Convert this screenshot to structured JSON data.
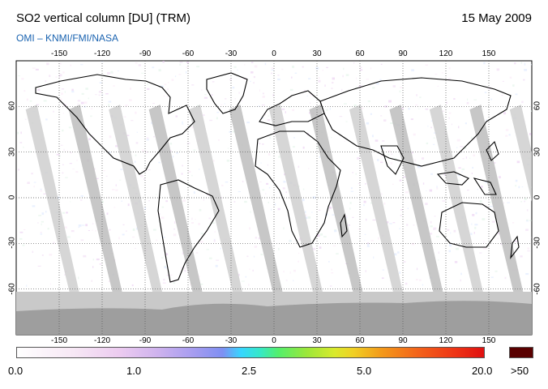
{
  "header": {
    "title": "SO2 vertical column [DU] (TRM)",
    "date": "15 May 2009",
    "credit": "OMI  –  KNMI/FMI/NASA"
  },
  "map": {
    "projection": "plate carree",
    "lon_range": [
      -180,
      180
    ],
    "lat_range": [
      -90,
      90
    ],
    "lon_ticks": [
      "-150",
      "-120",
      "-90",
      "-60",
      "-30",
      "0",
      "30",
      "60",
      "90",
      "120",
      "150"
    ],
    "lat_ticks": [
      "60",
      "30",
      "0",
      "-30",
      "-60"
    ],
    "colors": {
      "no_data_gap": "#c8c8c8",
      "low_sun": "#bdbdbd",
      "coastline": "#000000",
      "grid": "#555555"
    }
  },
  "colorbar": {
    "labels": [
      "0.0",
      "1.0",
      "2.5",
      "5.0",
      "20.0"
    ],
    "saturation_label": ">50",
    "saturation_color": "#5a0000"
  }
}
